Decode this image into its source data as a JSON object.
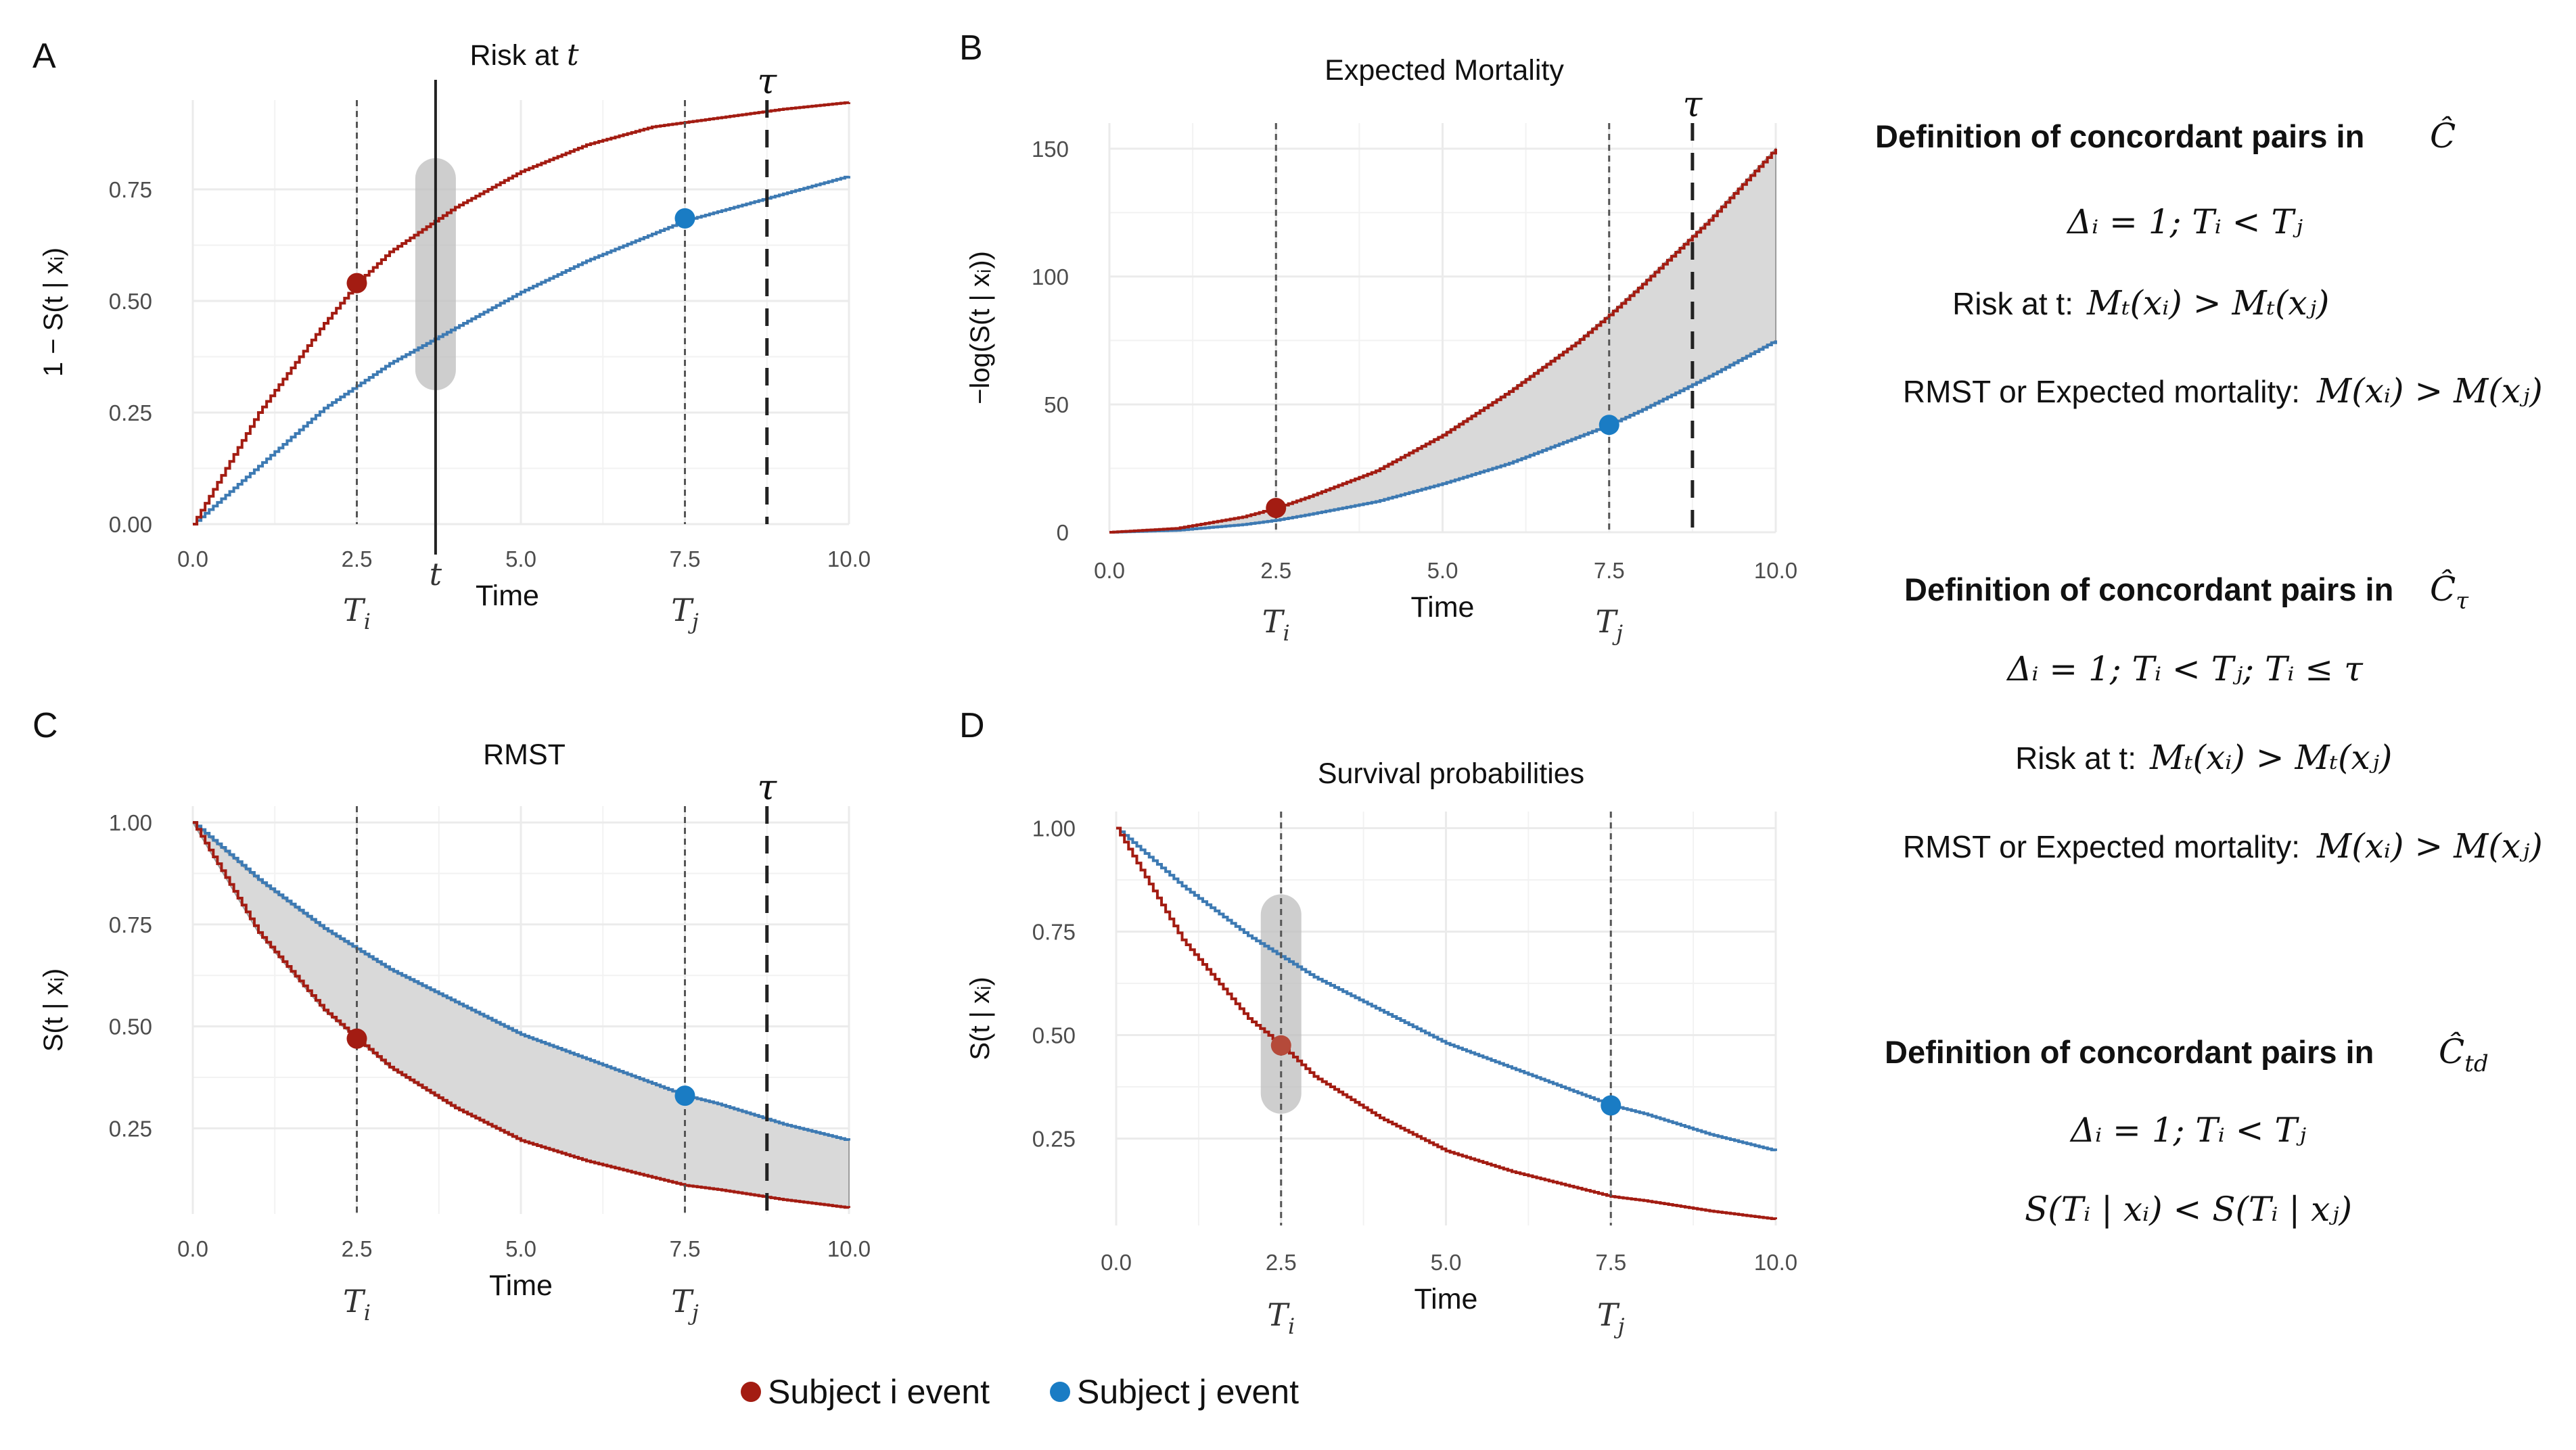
{
  "chart_data": [
    {
      "panel": "A",
      "type": "line",
      "title": "Risk at t",
      "title_math_var": "t",
      "xlabel": "Time",
      "ylabel": "1 − S(t | xᵢ)",
      "xlim": [
        0,
        10
      ],
      "ylim": [
        0,
        0.95
      ],
      "xticks": [
        "0.0",
        "2.5",
        "5.0",
        "7.5",
        "10.0"
      ],
      "yticks": [
        "0.00",
        "0.25",
        "0.50",
        "0.75"
      ],
      "xtick_values": [
        0,
        2.5,
        5,
        7.5,
        10
      ],
      "ytick_values": [
        0,
        0.25,
        0.5,
        0.75
      ],
      "series": [
        {
          "name": "Subject i",
          "color": "#a31c12",
          "x": [
            0,
            1,
            2,
            2.5,
            3,
            4,
            5,
            6,
            7,
            7.5,
            8,
            9,
            10
          ],
          "y": [
            0,
            0.25,
            0.45,
            0.54,
            0.61,
            0.71,
            0.79,
            0.85,
            0.89,
            0.9,
            0.91,
            0.93,
            0.945
          ]
        },
        {
          "name": "Subject j",
          "color": "#3d7ab3",
          "x": [
            0,
            1,
            2,
            2.5,
            3,
            4,
            5,
            6,
            7,
            7.5,
            8,
            9,
            10
          ],
          "y": [
            0,
            0.13,
            0.26,
            0.31,
            0.36,
            0.44,
            0.52,
            0.59,
            0.65,
            0.68,
            0.7,
            0.74,
            0.78
          ]
        }
      ],
      "points": [
        {
          "x": 2.5,
          "y": 0.54,
          "color": "#a31c12"
        },
        {
          "x": 7.5,
          "y": 0.685,
          "color": "#1a7cc4"
        }
      ],
      "vlines": [
        {
          "x": 2.5,
          "style": "dotted",
          "label": "T",
          "sub": "i"
        },
        {
          "x": 7.5,
          "style": "dotted",
          "label": "T",
          "sub": "j"
        },
        {
          "x": 8.75,
          "style": "dashed",
          "top_label": "τ"
        },
        {
          "x": 3.7,
          "style": "solid",
          "label": "t"
        }
      ],
      "band_x": 3.7,
      "band_range": [
        0.3,
        0.82
      ],
      "shade": false
    },
    {
      "panel": "B",
      "type": "line",
      "title": "Expected Mortality",
      "xlabel": "Time",
      "ylabel": "−log(S(t | xᵢ))",
      "xlim": [
        0,
        10
      ],
      "ylim": [
        0,
        160
      ],
      "xticks": [
        "0.0",
        "2.5",
        "5.0",
        "7.5",
        "10.0"
      ],
      "yticks": [
        "0",
        "50",
        "100",
        "150"
      ],
      "xtick_values": [
        0,
        2.5,
        5,
        7.5,
        10
      ],
      "ytick_values": [
        0,
        50,
        100,
        150
      ],
      "series": [
        {
          "name": "Subject i",
          "color": "#a31c12",
          "x": [
            0,
            1,
            2,
            2.5,
            3,
            4,
            5,
            6,
            7,
            7.5,
            8,
            9,
            10
          ],
          "y": [
            0,
            1.5,
            6,
            9.5,
            14,
            24,
            38,
            55,
            74,
            85,
            97,
            122,
            150
          ]
        },
        {
          "name": "Subject j",
          "color": "#3d7ab3",
          "x": [
            0,
            1,
            2,
            2.5,
            3,
            4,
            5,
            6,
            7,
            7.5,
            8,
            9,
            10
          ],
          "y": [
            0,
            0.75,
            3,
            4.7,
            7,
            12,
            19,
            27,
            37,
            42,
            48,
            61,
            75
          ]
        }
      ],
      "points": [
        {
          "x": 2.5,
          "y": 9.5,
          "color": "#a31c12"
        },
        {
          "x": 7.5,
          "y": 42,
          "color": "#1a7cc4"
        }
      ],
      "vlines": [
        {
          "x": 2.5,
          "style": "dotted",
          "label": "T",
          "sub": "i"
        },
        {
          "x": 7.5,
          "style": "dotted",
          "label": "T",
          "sub": "j"
        },
        {
          "x": 8.75,
          "style": "dashed",
          "top_label": "τ"
        }
      ],
      "shade": true
    },
    {
      "panel": "C",
      "type": "line",
      "title": "RMST",
      "xlabel": "Time",
      "ylabel": "S(t | xᵢ)",
      "xlim": [
        0,
        10
      ],
      "ylim": [
        0.04,
        1.04
      ],
      "xticks": [
        "0.0",
        "2.5",
        "5.0",
        "7.5",
        "10.0"
      ],
      "yticks": [
        "0.25",
        "0.50",
        "0.75",
        "1.00"
      ],
      "xtick_values": [
        0,
        2.5,
        5,
        7.5,
        10
      ],
      "ytick_values": [
        0.25,
        0.5,
        0.75,
        1.0
      ],
      "series": [
        {
          "name": "Subject i",
          "color": "#a31c12",
          "x": [
            0,
            1,
            2,
            2.5,
            3,
            4,
            5,
            6,
            7,
            7.5,
            8,
            9,
            10
          ],
          "y": [
            1,
            0.73,
            0.54,
            0.47,
            0.4,
            0.3,
            0.22,
            0.17,
            0.13,
            0.11,
            0.1,
            0.075,
            0.055
          ]
        },
        {
          "name": "Subject j",
          "color": "#3d7ab3",
          "x": [
            0,
            1,
            2,
            2.5,
            3,
            4,
            5,
            6,
            7,
            7.5,
            8,
            9,
            10
          ],
          "y": [
            1,
            0.86,
            0.74,
            0.69,
            0.64,
            0.56,
            0.48,
            0.42,
            0.36,
            0.33,
            0.31,
            0.26,
            0.22
          ]
        }
      ],
      "points": [
        {
          "x": 2.5,
          "y": 0.47,
          "color": "#a31c12"
        },
        {
          "x": 7.5,
          "y": 0.33,
          "color": "#1a7cc4"
        }
      ],
      "vlines": [
        {
          "x": 2.5,
          "style": "dotted",
          "label": "T",
          "sub": "i"
        },
        {
          "x": 7.5,
          "style": "dotted",
          "label": "T",
          "sub": "j"
        },
        {
          "x": 8.75,
          "style": "dashed",
          "top_label": "τ"
        }
      ],
      "shade": true
    },
    {
      "panel": "D",
      "type": "line",
      "title": "Survival probabilities",
      "xlabel": "Time",
      "ylabel": "S(t | xᵢ)",
      "xlim": [
        0,
        10
      ],
      "ylim": [
        0.04,
        1.04
      ],
      "xticks": [
        "0.0",
        "2.5",
        "5.0",
        "7.5",
        "10.0"
      ],
      "yticks": [
        "0.25",
        "0.50",
        "0.75",
        "1.00"
      ],
      "xtick_values": [
        0,
        2.5,
        5,
        7.5,
        10
      ],
      "ytick_values": [
        0.25,
        0.5,
        0.75,
        1.0
      ],
      "series": [
        {
          "name": "Subject i",
          "color": "#a31c12",
          "x": [
            0,
            1,
            2,
            2.5,
            3,
            4,
            5,
            6,
            7,
            7.5,
            8,
            9,
            10
          ],
          "y": [
            1,
            0.73,
            0.54,
            0.475,
            0.4,
            0.3,
            0.22,
            0.17,
            0.13,
            0.11,
            0.1,
            0.075,
            0.055
          ]
        },
        {
          "name": "Subject j",
          "color": "#3d7ab3",
          "x": [
            0,
            1,
            2,
            2.5,
            3,
            4,
            5,
            6,
            7,
            7.5,
            8,
            9,
            10
          ],
          "y": [
            1,
            0.86,
            0.74,
            0.69,
            0.64,
            0.56,
            0.48,
            0.42,
            0.36,
            0.33,
            0.31,
            0.26,
            0.22
          ]
        }
      ],
      "points": [
        {
          "x": 2.5,
          "y": 0.475,
          "color": "#b54a3a"
        },
        {
          "x": 7.5,
          "y": 0.33,
          "color": "#1a7cc4"
        }
      ],
      "vlines": [
        {
          "x": 2.5,
          "style": "dotted",
          "label": "T",
          "sub": "i"
        },
        {
          "x": 7.5,
          "style": "dotted",
          "label": "T",
          "sub": "j"
        }
      ],
      "band_x": 2.5,
      "band_range": [
        0.31,
        0.84
      ],
      "shade": false
    }
  ],
  "definitions": [
    {
      "title": "Definition of concordant pairs in",
      "symbol": "Ĉ",
      "symbol_sub": "",
      "condition": "Δᵢ = 1; Tᵢ < Tⱼ",
      "rules": [
        {
          "label": "Risk at t:",
          "formula": "Mₜ(xᵢ) > Mₜ(xⱼ)"
        },
        {
          "label": "RMST or Expected mortality:",
          "formula": "M(xᵢ) > M(xⱼ)"
        }
      ]
    },
    {
      "title": "Definition of concordant pairs in",
      "symbol": "Ĉ",
      "symbol_sub": "τ",
      "condition": "Δᵢ = 1; Tᵢ < Tⱼ; Tᵢ ≤ τ",
      "rules": [
        {
          "label": "Risk at t:",
          "formula": "Mₜ(xᵢ) > Mₜ(xⱼ)"
        },
        {
          "label": "RMST or Expected mortality:",
          "formula": "M(xᵢ) > M(xⱼ)"
        }
      ]
    },
    {
      "title": "Definition of concordant pairs in",
      "symbol": "Ĉ",
      "symbol_sub": "td",
      "condition": "Δᵢ = 1; Tᵢ < Tⱼ",
      "rules": [
        {
          "label": "",
          "formula": "S(Tᵢ | xᵢ) < S(Tᵢ | xⱼ)"
        }
      ]
    }
  ],
  "legend": [
    {
      "label": "Subject i event",
      "color": "#a31c12"
    },
    {
      "label": "Subject j event",
      "color": "#1a7cc4"
    }
  ],
  "colors": {
    "grid": "#ebebeb",
    "shade": "#d9d9d9",
    "band": "#bdbdbd"
  }
}
